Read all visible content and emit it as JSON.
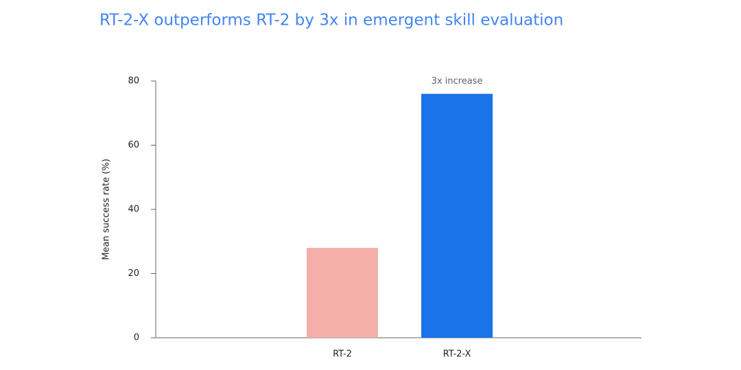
{
  "chart_data": {
    "type": "bar",
    "title": "RT-2-X outperforms RT-2 by 3x in emergent skill evaluation",
    "y_label": "Mean success rate (%)",
    "categories": [
      "RT-2",
      "RT-2-X"
    ],
    "values": [
      28,
      76
    ],
    "colors": [
      "#f4afa8",
      "#1a73e8"
    ],
    "annotation": "3x increase",
    "ylim": [
      0,
      80
    ],
    "yticks": [
      0,
      20,
      40,
      60,
      80
    ],
    "grid": false
  }
}
